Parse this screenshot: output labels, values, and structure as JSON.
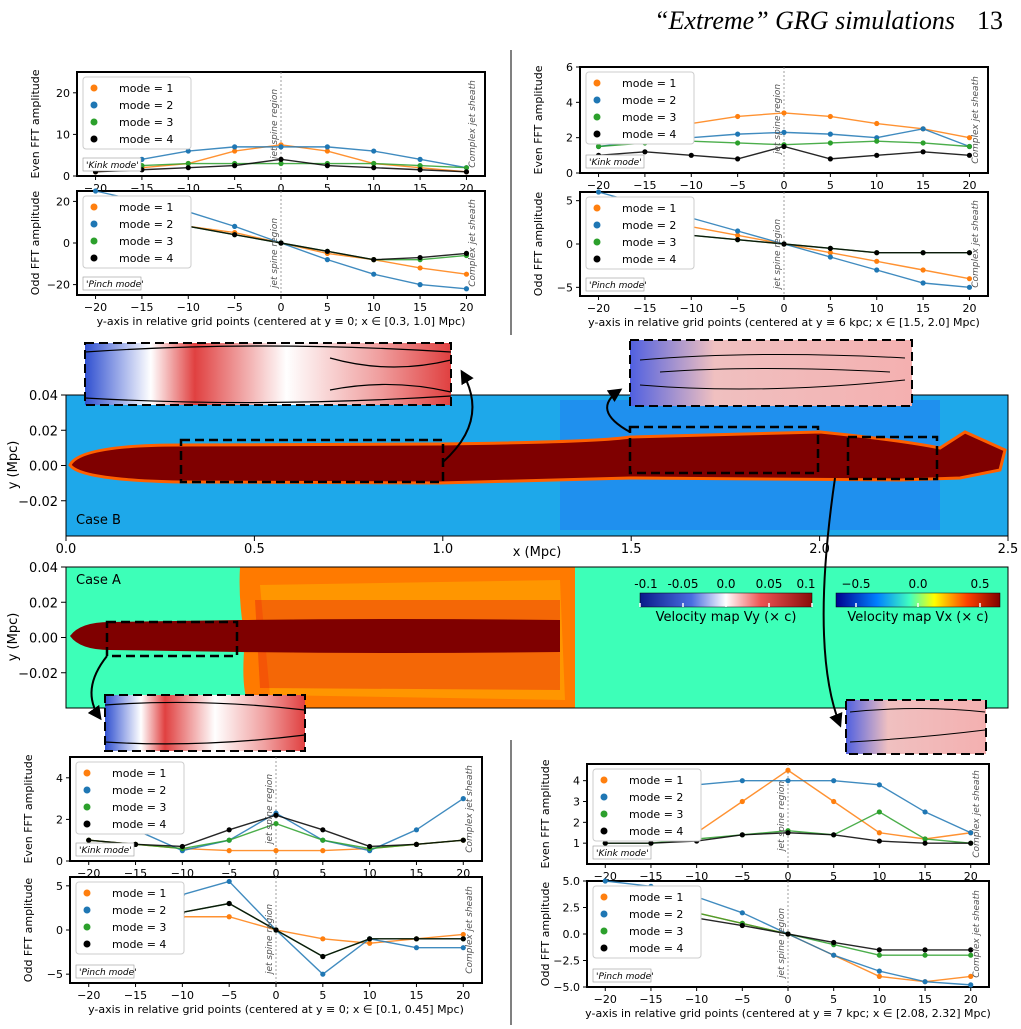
{
  "header": {
    "title": "“Extreme” GRG simulations",
    "page_number": "13"
  },
  "colors": {
    "mode1": "#ff7f0e",
    "mode2": "#1f77b4",
    "mode3": "#2ca02c",
    "mode4": "#000000",
    "map_bg": "#3dffb8",
    "jet_core": "#7f0000"
  },
  "labels": {
    "spine": "jet spine region",
    "sheath": "Complex jet sheath",
    "kink": "'Kink mode'",
    "pinch": "'Pinch mode'",
    "even_ylabel": "Even FFT amplitude",
    "odd_ylabel": "Odd FFT amplitude"
  },
  "legend": [
    "mode = 1",
    "mode = 2",
    "mode = 3",
    "mode = 4"
  ],
  "xlabels": {
    "tl": "y-axis in relative grid points (centered at y ≡ 0; x ∈ [0.3, 1.0] Mpc)",
    "tr": "y-axis in relative grid points (centered at y ≡ 6 kpc; x ∈ [1.5, 2.0] Mpc)",
    "bl": "y-axis in relative grid points (centered at y ≡ 0; x ∈ [0.1, 0.45] Mpc)",
    "br": "y-axis in relative grid points (centered at y ≡ 7 kpc; x ∈ [2.08, 2.32] Mpc)"
  },
  "maps": {
    "caseB": "Case B",
    "caseA": "Case A",
    "xlabel": "x (Mpc)",
    "ylabel": "y (Mpc)",
    "xticks": [
      "0.0",
      "0.5",
      "1.0",
      "1.5",
      "2.0",
      "2.5"
    ],
    "yticks": [
      "0.04",
      "0.02",
      "0.00",
      "−0.02"
    ],
    "vy_ticks": [
      "-0.1",
      "-0.05",
      "0.0",
      "0.05",
      "0.1"
    ],
    "vy_label": "Velocity map Vy (× c)",
    "vx_ticks": [
      "−0.5",
      "0.0",
      "0.5"
    ],
    "vx_label": "Velocity map Vx (× c)"
  },
  "chart_data": [
    {
      "id": "tl-even",
      "type": "line",
      "x": [
        -20,
        -15,
        -10,
        -5,
        0,
        5,
        10,
        15,
        20
      ],
      "ylim": [
        0,
        25
      ],
      "yticks": [
        "0",
        "10",
        "20"
      ],
      "series": [
        {
          "name": "mode = 1",
          "values": [
            1,
            2,
            3,
            6,
            7.5,
            6,
            3,
            2,
            1
          ]
        },
        {
          "name": "mode = 2",
          "values": [
            2,
            4,
            6,
            7,
            7,
            7,
            6,
            4,
            2
          ]
        },
        {
          "name": "mode = 3",
          "values": [
            2,
            2.5,
            3,
            3,
            3,
            3,
            3,
            2.5,
            2
          ]
        },
        {
          "name": "mode = 4",
          "values": [
            1,
            1.5,
            2,
            2.5,
            4,
            2.5,
            2,
            1.5,
            1
          ]
        }
      ]
    },
    {
      "id": "tl-odd",
      "type": "line",
      "x": [
        -20,
        -15,
        -10,
        -5,
        0,
        5,
        10,
        15,
        20
      ],
      "ylim": [
        -25,
        25
      ],
      "yticks": [
        "−20",
        "0",
        "20"
      ],
      "series": [
        {
          "name": "mode = 1",
          "values": [
            15,
            12,
            8,
            5,
            0,
            -5,
            -8,
            -12,
            -15
          ]
        },
        {
          "name": "mode = 2",
          "values": [
            25,
            20,
            15,
            8,
            0,
            -8,
            -15,
            -20,
            -22
          ]
        },
        {
          "name": "mode = 3",
          "values": [
            6,
            8,
            8,
            4,
            0,
            -4,
            -8,
            -8,
            -6
          ]
        },
        {
          "name": "mode = 4",
          "values": [
            5,
            7,
            8,
            4,
            0,
            -4,
            -8,
            -7,
            -5
          ]
        }
      ]
    },
    {
      "id": "tr-even",
      "type": "line",
      "x": [
        -20,
        -15,
        -10,
        -5,
        0,
        5,
        10,
        15,
        20
      ],
      "ylim": [
        0,
        6
      ],
      "yticks": [
        "0",
        "2",
        "4",
        "6"
      ],
      "series": [
        {
          "name": "mode = 1",
          "values": [
            2,
            2.5,
            2.8,
            3.2,
            3.4,
            3.2,
            2.8,
            2.5,
            2
          ]
        },
        {
          "name": "mode = 2",
          "values": [
            1.5,
            1.8,
            2,
            2.2,
            2.3,
            2.2,
            2,
            2.5,
            1.5
          ]
        },
        {
          "name": "mode = 3",
          "values": [
            1.5,
            1.7,
            1.8,
            1.7,
            1.6,
            1.7,
            1.8,
            1.7,
            1.5
          ]
        },
        {
          "name": "mode = 4",
          "values": [
            1,
            1.2,
            1,
            0.8,
            1.5,
            0.8,
            1,
            1.2,
            1
          ]
        }
      ]
    },
    {
      "id": "tr-odd",
      "type": "line",
      "x": [
        -20,
        -15,
        -10,
        -5,
        0,
        5,
        10,
        15,
        20
      ],
      "ylim": [
        -6,
        6
      ],
      "yticks": [
        "−5",
        "0",
        "5"
      ],
      "series": [
        {
          "name": "mode = 1",
          "values": [
            4,
            3,
            2,
            1,
            0,
            -1,
            -2,
            -3,
            -4
          ]
        },
        {
          "name": "mode = 2",
          "values": [
            6,
            4.5,
            3,
            1.5,
            0,
            -1.5,
            -3,
            -4.5,
            -5
          ]
        },
        {
          "name": "mode = 3",
          "values": [
            1,
            1,
            1,
            0.5,
            0,
            -0.5,
            -1,
            -1,
            -1
          ]
        },
        {
          "name": "mode = 4",
          "values": [
            1,
            1,
            1,
            0.5,
            0,
            -0.5,
            -1,
            -1,
            -1
          ]
        }
      ]
    },
    {
      "id": "bl-even",
      "type": "line",
      "x": [
        -20,
        -15,
        -10,
        -5,
        0,
        5,
        10,
        15,
        20
      ],
      "ylim": [
        0,
        5
      ],
      "yticks": [
        "0",
        "2",
        "4"
      ],
      "series": [
        {
          "name": "mode = 1",
          "values": [
            1,
            0.8,
            0.6,
            0.5,
            0.5,
            0.5,
            0.6,
            0.8,
            1
          ]
        },
        {
          "name": "mode = 2",
          "values": [
            2,
            1.5,
            0.5,
            1,
            2.3,
            1,
            0.5,
            1.5,
            3
          ]
        },
        {
          "name": "mode = 3",
          "values": [
            1,
            0.8,
            0.6,
            1,
            1.8,
            1,
            0.6,
            0.8,
            1
          ]
        },
        {
          "name": "mode = 4",
          "values": [
            1,
            0.8,
            0.7,
            1.5,
            2.2,
            1.5,
            0.7,
            0.8,
            1
          ]
        }
      ]
    },
    {
      "id": "bl-odd",
      "type": "line",
      "x": [
        -20,
        -15,
        -10,
        -5,
        0,
        5,
        10,
        15,
        20
      ],
      "ylim": [
        -6,
        6
      ],
      "yticks": [
        "−5",
        "0",
        "5"
      ],
      "series": [
        {
          "name": "mode = 1",
          "values": [
            0.5,
            1,
            1.5,
            1.5,
            0,
            -1,
            -1.5,
            -1,
            -0.5
          ]
        },
        {
          "name": "mode = 2",
          "values": [
            2,
            3,
            4,
            5.5,
            0,
            -5,
            -1,
            -2,
            -2
          ]
        },
        {
          "name": "mode = 3",
          "values": [
            1,
            1.5,
            2,
            3,
            0,
            -3,
            -1,
            -1,
            -1
          ]
        },
        {
          "name": "mode = 4",
          "values": [
            1,
            1.5,
            2,
            3,
            0,
            -3,
            -1,
            -1,
            -1
          ]
        }
      ]
    },
    {
      "id": "br-even",
      "type": "line",
      "x": [
        -20,
        -15,
        -10,
        -5,
        0,
        5,
        10,
        15,
        20
      ],
      "ylim": [
        0,
        4.8
      ],
      "yticks": [
        "1",
        "2",
        "3",
        "4"
      ],
      "series": [
        {
          "name": "mode = 1",
          "values": [
            1.5,
            1.2,
            1.5,
            3,
            4.5,
            3,
            1.5,
            1.2,
            1.5
          ]
        },
        {
          "name": "mode = 2",
          "values": [
            2.5,
            3.5,
            3.8,
            4,
            4,
            4,
            3.8,
            2.5,
            1.5
          ]
        },
        {
          "name": "mode = 3",
          "values": [
            1,
            1,
            1.2,
            1.4,
            1.6,
            1.4,
            2.5,
            1.2,
            1
          ]
        },
        {
          "name": "mode = 4",
          "values": [
            1,
            1,
            1.1,
            1.4,
            1.5,
            1.4,
            1.1,
            1,
            1
          ]
        }
      ]
    },
    {
      "id": "br-odd",
      "type": "line",
      "x": [
        -20,
        -15,
        -10,
        -5,
        0,
        5,
        10,
        15,
        20
      ],
      "ylim": [
        -5,
        5
      ],
      "yticks": [
        "−5.0",
        "−2.5",
        "0.0",
        "2.5",
        "5.0"
      ],
      "series": [
        {
          "name": "mode = 1",
          "values": [
            3,
            2.5,
            2,
            1,
            0,
            -2,
            -4,
            -4.5,
            -4
          ]
        },
        {
          "name": "mode = 2",
          "values": [
            5,
            4.5,
            3.5,
            2,
            0,
            -2,
            -3.5,
            -4.5,
            -4.8
          ]
        },
        {
          "name": "mode = 3",
          "values": [
            2,
            2,
            2,
            1,
            0,
            -1,
            -2,
            -2,
            -2
          ]
        },
        {
          "name": "mode = 4",
          "values": [
            1.5,
            1.5,
            1.5,
            0.8,
            0,
            -0.8,
            -1.5,
            -1.5,
            -1.5
          ]
        }
      ]
    }
  ]
}
